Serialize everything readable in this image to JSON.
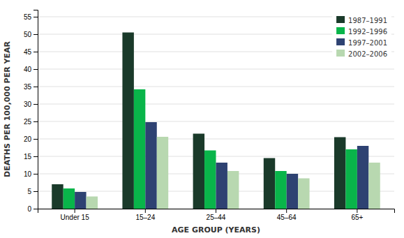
{
  "chart_data": {
    "type": "bar",
    "xlabel": "AGE GROUP (YEARS)",
    "ylabel": "DEATHS PER 100,000 PER YEAR",
    "categories": [
      "Under 15",
      "15–24",
      "25–44",
      "45–64",
      "65+"
    ],
    "series": [
      {
        "name": "1987–1991",
        "color": "#1a3a2a",
        "values": [
          7.0,
          50.5,
          21.5,
          14.5,
          20.5
        ]
      },
      {
        "name": "1992–1996",
        "color": "#09b54a",
        "values": [
          5.8,
          34.2,
          16.7,
          10.8,
          17.0
        ]
      },
      {
        "name": "1997–2001",
        "color": "#2e4272",
        "values": [
          4.8,
          24.8,
          13.2,
          10.0,
          18.0
        ]
      },
      {
        "name": "2002–2006",
        "color": "#b8d8b0",
        "values": [
          3.5,
          20.6,
          10.8,
          8.7,
          13.2
        ]
      }
    ],
    "ylim": [
      0,
      57
    ],
    "yticks": [
      0,
      5,
      10,
      15,
      20,
      25,
      30,
      35,
      40,
      45,
      50,
      55
    ],
    "grid": true,
    "legend": "upper-right"
  }
}
